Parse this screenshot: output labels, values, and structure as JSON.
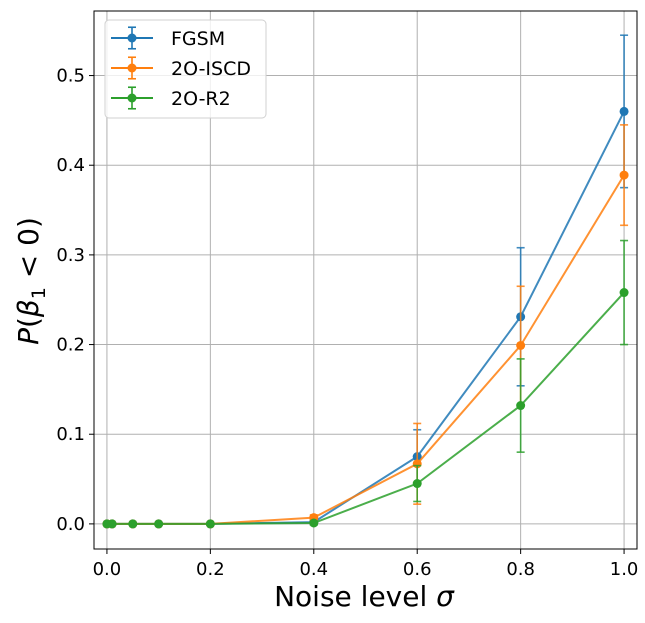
{
  "chart_data": {
    "type": "line",
    "xlabel": "Noise level σ",
    "ylabel": "P(β₁ < 0)",
    "xlim": [
      -0.025,
      1.025
    ],
    "ylim": [
      -0.028,
      0.572
    ],
    "xticks": [
      0.0,
      0.2,
      0.4,
      0.6,
      0.8,
      1.0
    ],
    "xtick_labels": [
      "0.0",
      "0.2",
      "0.4",
      "0.6",
      "0.8",
      "1.0"
    ],
    "yticks": [
      0.0,
      0.1,
      0.2,
      0.3,
      0.4,
      0.5
    ],
    "ytick_labels": [
      "0.0",
      "0.1",
      "0.2",
      "0.3",
      "0.4",
      "0.5"
    ],
    "grid": true,
    "legend_position": "top-left",
    "x": [
      0.0,
      0.01,
      0.05,
      0.1,
      0.2,
      0.4,
      0.6,
      0.8,
      1.0
    ],
    "series": [
      {
        "name": "FGSM",
        "color": "#1f77b4",
        "values": [
          0.0,
          0.0,
          0.0,
          0.0,
          0.0,
          0.002,
          0.075,
          0.231,
          0.46
        ],
        "errors": [
          0.0,
          0.0,
          0.0,
          0.0,
          0.0,
          0.003,
          0.03,
          0.077,
          0.085
        ]
      },
      {
        "name": "2O-ISCD",
        "color": "#ff7f0e",
        "values": [
          0.0,
          0.0,
          0.0,
          0.0,
          0.0,
          0.007,
          0.067,
          0.199,
          0.389
        ],
        "errors": [
          0.0,
          0.0,
          0.0,
          0.0,
          0.0,
          0.003,
          0.045,
          0.066,
          0.056
        ]
      },
      {
        "name": "2O-R2",
        "color": "#2ca02c",
        "values": [
          0.0,
          0.0,
          0.0,
          0.0,
          0.0,
          0.001,
          0.045,
          0.132,
          0.258
        ],
        "errors": [
          0.0,
          0.0,
          0.0,
          0.0,
          0.0,
          0.002,
          0.02,
          0.052,
          0.058
        ]
      }
    ],
    "legend_error_bar": 0.012
  }
}
